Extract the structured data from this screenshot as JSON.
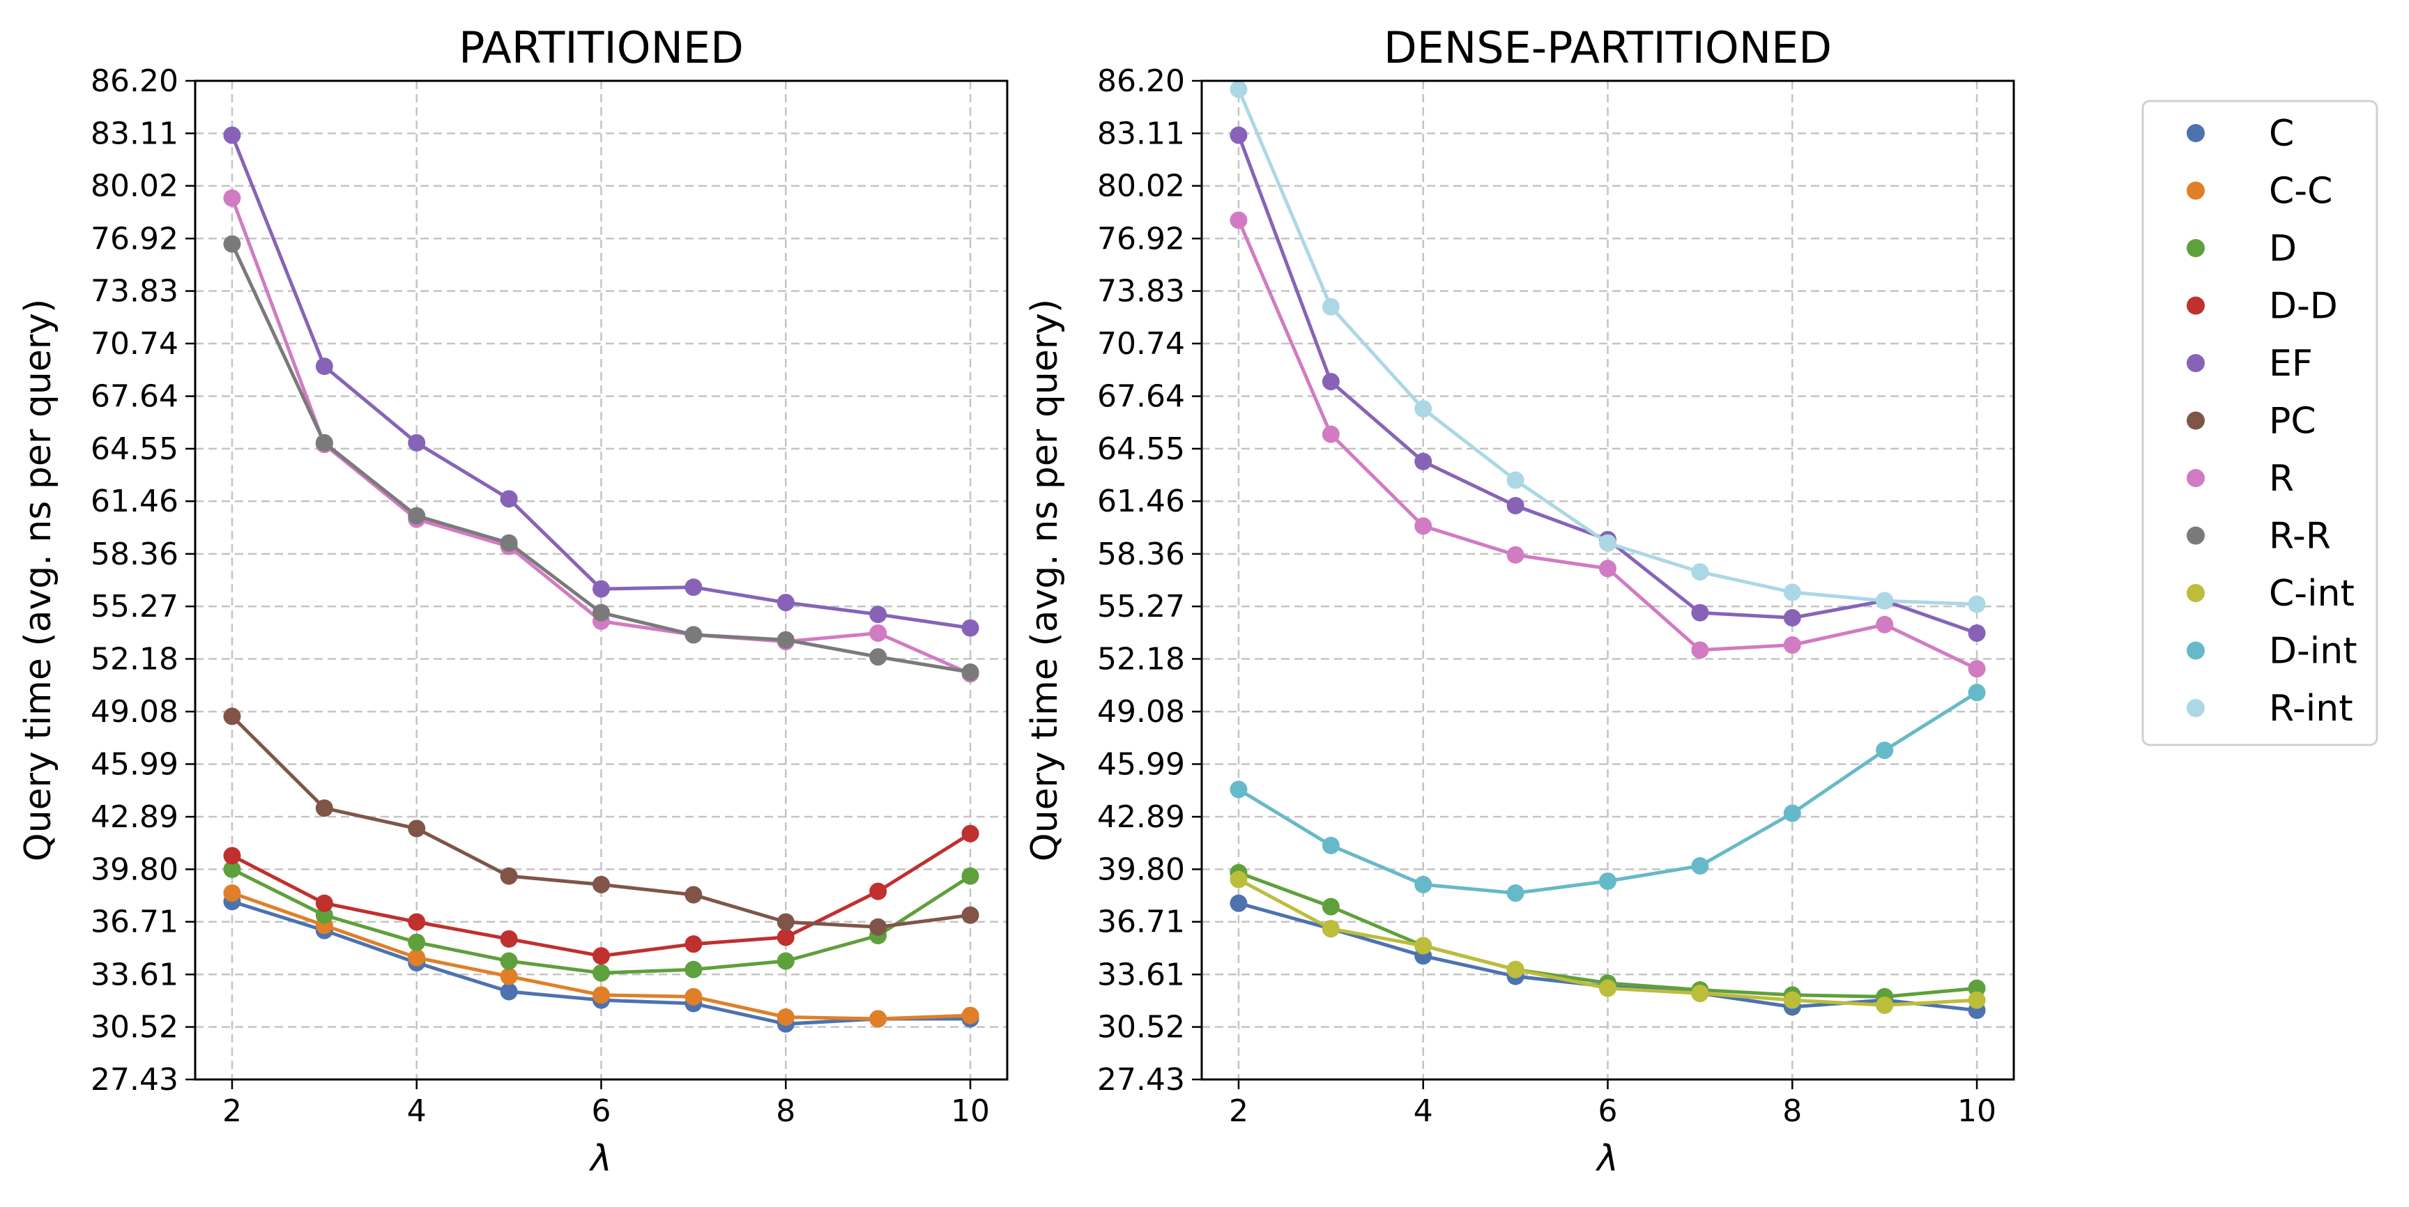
{
  "chart_data": [
    {
      "type": "line",
      "title": "PARTITIONED",
      "xlabel": "λ",
      "ylabel": "Query time (avg. ns per query)",
      "x": [
        2,
        3,
        4,
        5,
        6,
        7,
        8,
        9,
        10
      ],
      "xticks": [
        "2",
        "4",
        "6",
        "8",
        "10"
      ],
      "xlim": [
        1.6,
        10.4
      ],
      "yticks": [
        "27.43",
        "30.52",
        "33.61",
        "36.71",
        "39.80",
        "42.89",
        "45.99",
        "49.08",
        "52.18",
        "55.27",
        "58.36",
        "61.46",
        "64.55",
        "67.64",
        "70.74",
        "73.83",
        "76.92",
        "80.02",
        "83.11",
        "86.20"
      ],
      "ylim": [
        27.43,
        86.2
      ],
      "grid": true,
      "series": [
        {
          "name": "C",
          "values": [
            37.9,
            36.2,
            34.3,
            32.6,
            32.1,
            31.9,
            30.7,
            31.0,
            31.0
          ]
        },
        {
          "name": "C-C",
          "values": [
            38.4,
            36.5,
            34.6,
            33.5,
            32.4,
            32.3,
            31.1,
            31.0,
            31.2
          ]
        },
        {
          "name": "D",
          "values": [
            39.8,
            37.1,
            35.5,
            34.4,
            33.7,
            33.9,
            34.4,
            35.9,
            39.4
          ]
        },
        {
          "name": "D-D",
          "values": [
            40.6,
            37.8,
            36.7,
            35.7,
            34.7,
            35.4,
            35.8,
            38.5,
            41.9
          ]
        },
        {
          "name": "EF",
          "values": [
            83.0,
            69.4,
            64.9,
            61.6,
            56.3,
            56.4,
            55.5,
            54.8,
            54.0
          ]
        },
        {
          "name": "PC",
          "values": [
            48.8,
            43.4,
            42.2,
            39.4,
            38.9,
            38.3,
            36.7,
            36.4,
            37.1
          ]
        },
        {
          "name": "R",
          "values": [
            79.3,
            64.8,
            60.4,
            58.8,
            54.4,
            53.6,
            53.2,
            53.7,
            51.3
          ]
        },
        {
          "name": "R-R",
          "values": [
            76.6,
            64.9,
            60.6,
            59.0,
            54.9,
            53.6,
            53.3,
            52.3,
            51.4
          ]
        }
      ]
    },
    {
      "type": "line",
      "title": "DENSE-PARTITIONED",
      "xlabel": "λ",
      "ylabel": "Query time (avg. ns per query)",
      "x": [
        2,
        3,
        4,
        5,
        6,
        7,
        8,
        9,
        10
      ],
      "xticks": [
        "2",
        "4",
        "6",
        "8",
        "10"
      ],
      "xlim": [
        1.6,
        10.4
      ],
      "yticks": [
        "27.43",
        "30.52",
        "33.61",
        "36.71",
        "39.80",
        "42.89",
        "45.99",
        "49.08",
        "52.18",
        "55.27",
        "58.36",
        "61.46",
        "64.55",
        "67.64",
        "70.74",
        "73.83",
        "76.92",
        "80.02",
        "83.11",
        "86.20"
      ],
      "ylim": [
        27.43,
        86.2
      ],
      "grid": true,
      "series": [
        {
          "name": "C",
          "values": [
            37.8,
            36.3,
            34.7,
            33.5,
            32.9,
            32.5,
            31.7,
            32.1,
            31.5
          ]
        },
        {
          "name": "D",
          "values": [
            39.6,
            37.6,
            35.3,
            33.9,
            33.1,
            32.7,
            32.4,
            32.3,
            32.8
          ]
        },
        {
          "name": "EF",
          "values": [
            83.0,
            68.5,
            63.8,
            61.2,
            59.2,
            54.9,
            54.6,
            55.6,
            53.7
          ]
        },
        {
          "name": "R",
          "values": [
            78.0,
            65.4,
            60.0,
            58.3,
            57.5,
            52.7,
            53.0,
            54.2,
            51.6
          ]
        },
        {
          "name": "C-int",
          "values": [
            39.2,
            36.3,
            35.3,
            33.9,
            32.8,
            32.5,
            32.1,
            31.8,
            32.1
          ]
        },
        {
          "name": "D-int",
          "values": [
            44.5,
            41.2,
            38.9,
            38.4,
            39.1,
            40.0,
            43.1,
            46.8,
            50.2
          ]
        },
        {
          "name": "R-int",
          "values": [
            85.7,
            72.9,
            66.9,
            62.7,
            59.0,
            57.3,
            56.1,
            55.6,
            55.4
          ]
        }
      ]
    }
  ],
  "legend": {
    "position": "right",
    "entries": [
      {
        "name": "C",
        "color": "#4c72b0"
      },
      {
        "name": "C-C",
        "color": "#e07f28"
      },
      {
        "name": "D",
        "color": "#5ea03c"
      },
      {
        "name": "D-D",
        "color": "#c0302f"
      },
      {
        "name": "EF",
        "color": "#8763b8"
      },
      {
        "name": "PC",
        "color": "#805548"
      },
      {
        "name": "R",
        "color": "#d17bc2"
      },
      {
        "name": "R-R",
        "color": "#7a7a7a"
      },
      {
        "name": "C-int",
        "color": "#bcbd3a"
      },
      {
        "name": "D-int",
        "color": "#66b9c9"
      },
      {
        "name": "R-int",
        "color": "#abd8e4"
      }
    ]
  }
}
